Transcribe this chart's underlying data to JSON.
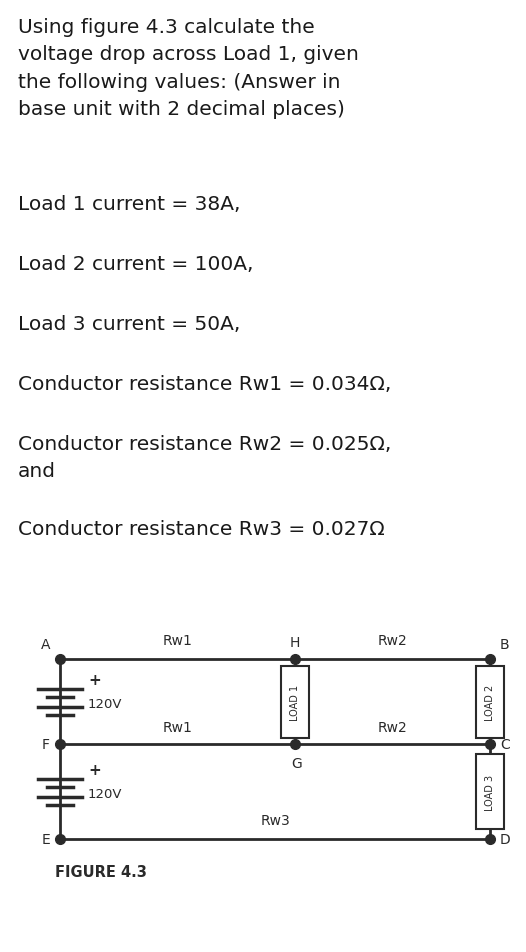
{
  "title_text": "Using figure 4.3 calculate the\nvoltage drop across Load 1, given\nthe following values: (Answer in\nbase unit with 2 decimal places)",
  "params": [
    "Load 1 current = 38A,",
    "Load 2 current = 100A,",
    "Load 3 current = 50A,",
    "Conductor resistance Rw1 = 0.034Ω,",
    "Conductor resistance Rw2 = 0.025Ω,\nand",
    "Conductor resistance Rw3 = 0.027Ω"
  ],
  "figure_label": "FIGURE 4.3",
  "bg_color": "#ffffff",
  "text_color": "#1a1a1a",
  "font_size_title": 14.5,
  "font_size_params": 14.5,
  "font_size_diagram": 10,
  "wire_color": "#2a2a2a"
}
